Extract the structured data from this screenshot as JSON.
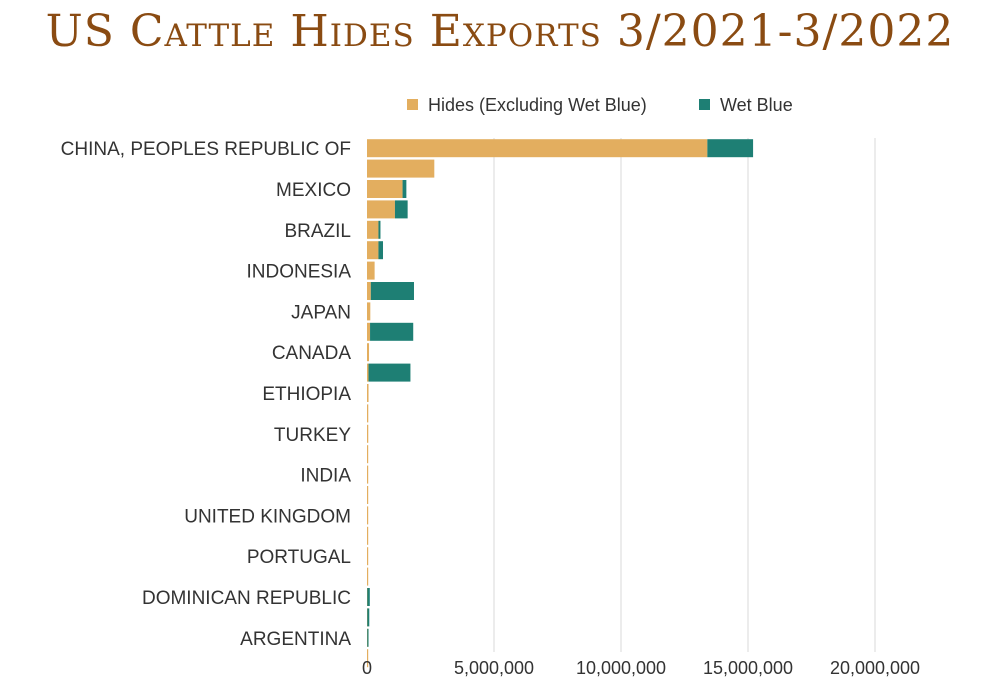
{
  "chart_data": {
    "type": "bar",
    "orientation": "horizontal",
    "stacked": true,
    "title": "US Cattle Hides Exports 3/2021-3/2022",
    "categories": [
      "CHINA, PEOPLES REPUBLIC OF",
      "",
      "MEXICO",
      "",
      "BRAZIL",
      "",
      "INDONESIA",
      "",
      "JAPAN",
      "",
      "CANADA",
      "",
      "ETHIOPIA",
      "",
      "TURKEY",
      "",
      "INDIA",
      "",
      "UNITED KINGDOM",
      "",
      "PORTUGAL",
      "",
      "DOMINICAN REPUBLIC",
      "",
      "ARGENTINA",
      ""
    ],
    "series": [
      {
        "name": "Hides (Excluding Wet Blue)",
        "color": "#e3ae5f",
        "values": [
          13400000,
          2650000,
          1400000,
          1100000,
          450000,
          450000,
          300000,
          150000,
          130000,
          120000,
          80000,
          60000,
          60000,
          50000,
          50000,
          40000,
          40000,
          30000,
          30000,
          20000,
          20000,
          15000,
          10000,
          10000,
          10000,
          10000
        ]
      },
      {
        "name": "Wet Blue",
        "color": "#1e7f74",
        "values": [
          1800000,
          0,
          150000,
          500000,
          80000,
          180000,
          0,
          1700000,
          0,
          1700000,
          0,
          1650000,
          0,
          0,
          0,
          0,
          0,
          0,
          0,
          0,
          0,
          0,
          100000,
          80000,
          50000,
          0
        ]
      }
    ],
    "xlim": [
      0,
      20000000
    ],
    "xticks": [
      "0",
      "5,000,000",
      "10,000,000",
      "15,000,000",
      "20,000,000"
    ],
    "grid": true,
    "legend_position": "top"
  }
}
